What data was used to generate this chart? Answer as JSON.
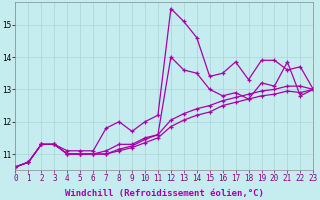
{
  "xlabel": "Windchill (Refroidissement éolien,°C)",
  "background_color": "#c5edf0",
  "grid_color": "#a8d4d8",
  "line_color": "#aa00aa",
  "x_ticks": [
    0,
    1,
    2,
    3,
    4,
    5,
    6,
    7,
    8,
    9,
    10,
    11,
    12,
    13,
    14,
    15,
    16,
    17,
    18,
    19,
    20,
    21,
    22,
    23
  ],
  "y_ticks": [
    11,
    12,
    13,
    14,
    15
  ],
  "xlim": [
    0,
    23
  ],
  "ylim": [
    10.5,
    15.7
  ],
  "lines": [
    {
      "x": [
        0,
        1,
        2,
        3,
        4,
        5,
        6,
        7,
        8,
        9,
        10,
        11,
        12,
        13,
        14,
        15,
        16,
        17,
        18,
        19,
        20,
        21,
        22,
        23
      ],
      "y": [
        10.6,
        10.75,
        11.3,
        11.3,
        11.1,
        11.1,
        11.1,
        11.8,
        12.0,
        11.7,
        12.0,
        12.2,
        15.5,
        15.1,
        14.6,
        13.4,
        13.5,
        13.85,
        13.3,
        13.9,
        13.9,
        13.6,
        13.7,
        13.0
      ]
    },
    {
      "x": [
        0,
        1,
        2,
        3,
        4,
        5,
        6,
        7,
        8,
        9,
        10,
        11,
        12,
        13,
        14,
        15,
        16,
        17,
        18,
        19,
        20,
        21,
        22,
        23
      ],
      "y": [
        10.6,
        10.75,
        11.3,
        11.3,
        11.0,
        11.0,
        11.0,
        11.1,
        11.3,
        11.3,
        11.5,
        11.6,
        14.0,
        13.6,
        13.5,
        13.0,
        12.8,
        12.9,
        12.7,
        13.2,
        13.1,
        13.85,
        12.8,
        13.0
      ]
    },
    {
      "x": [
        0,
        1,
        2,
        3,
        4,
        5,
        6,
        7,
        8,
        9,
        10,
        11,
        12,
        13,
        14,
        15,
        16,
        17,
        18,
        19,
        20,
        21,
        22,
        23
      ],
      "y": [
        10.6,
        10.75,
        11.3,
        11.3,
        11.0,
        11.0,
        11.0,
        11.0,
        11.15,
        11.25,
        11.45,
        11.6,
        12.05,
        12.25,
        12.4,
        12.5,
        12.65,
        12.75,
        12.85,
        12.95,
        13.0,
        13.1,
        13.1,
        13.0
      ]
    },
    {
      "x": [
        0,
        1,
        2,
        3,
        4,
        5,
        6,
        7,
        8,
        9,
        10,
        11,
        12,
        13,
        14,
        15,
        16,
        17,
        18,
        19,
        20,
        21,
        22,
        23
      ],
      "y": [
        10.6,
        10.75,
        11.3,
        11.3,
        11.0,
        11.0,
        11.0,
        11.0,
        11.1,
        11.2,
        11.35,
        11.5,
        11.85,
        12.05,
        12.2,
        12.3,
        12.5,
        12.6,
        12.7,
        12.8,
        12.85,
        12.95,
        12.9,
        13.0
      ]
    }
  ],
  "marker": "+",
  "markersize": 3.5,
  "linewidth": 0.9,
  "xlabel_fontsize": 6.5,
  "tick_fontsize": 5.5,
  "fig_width": 3.2,
  "fig_height": 2.0,
  "dpi": 100
}
